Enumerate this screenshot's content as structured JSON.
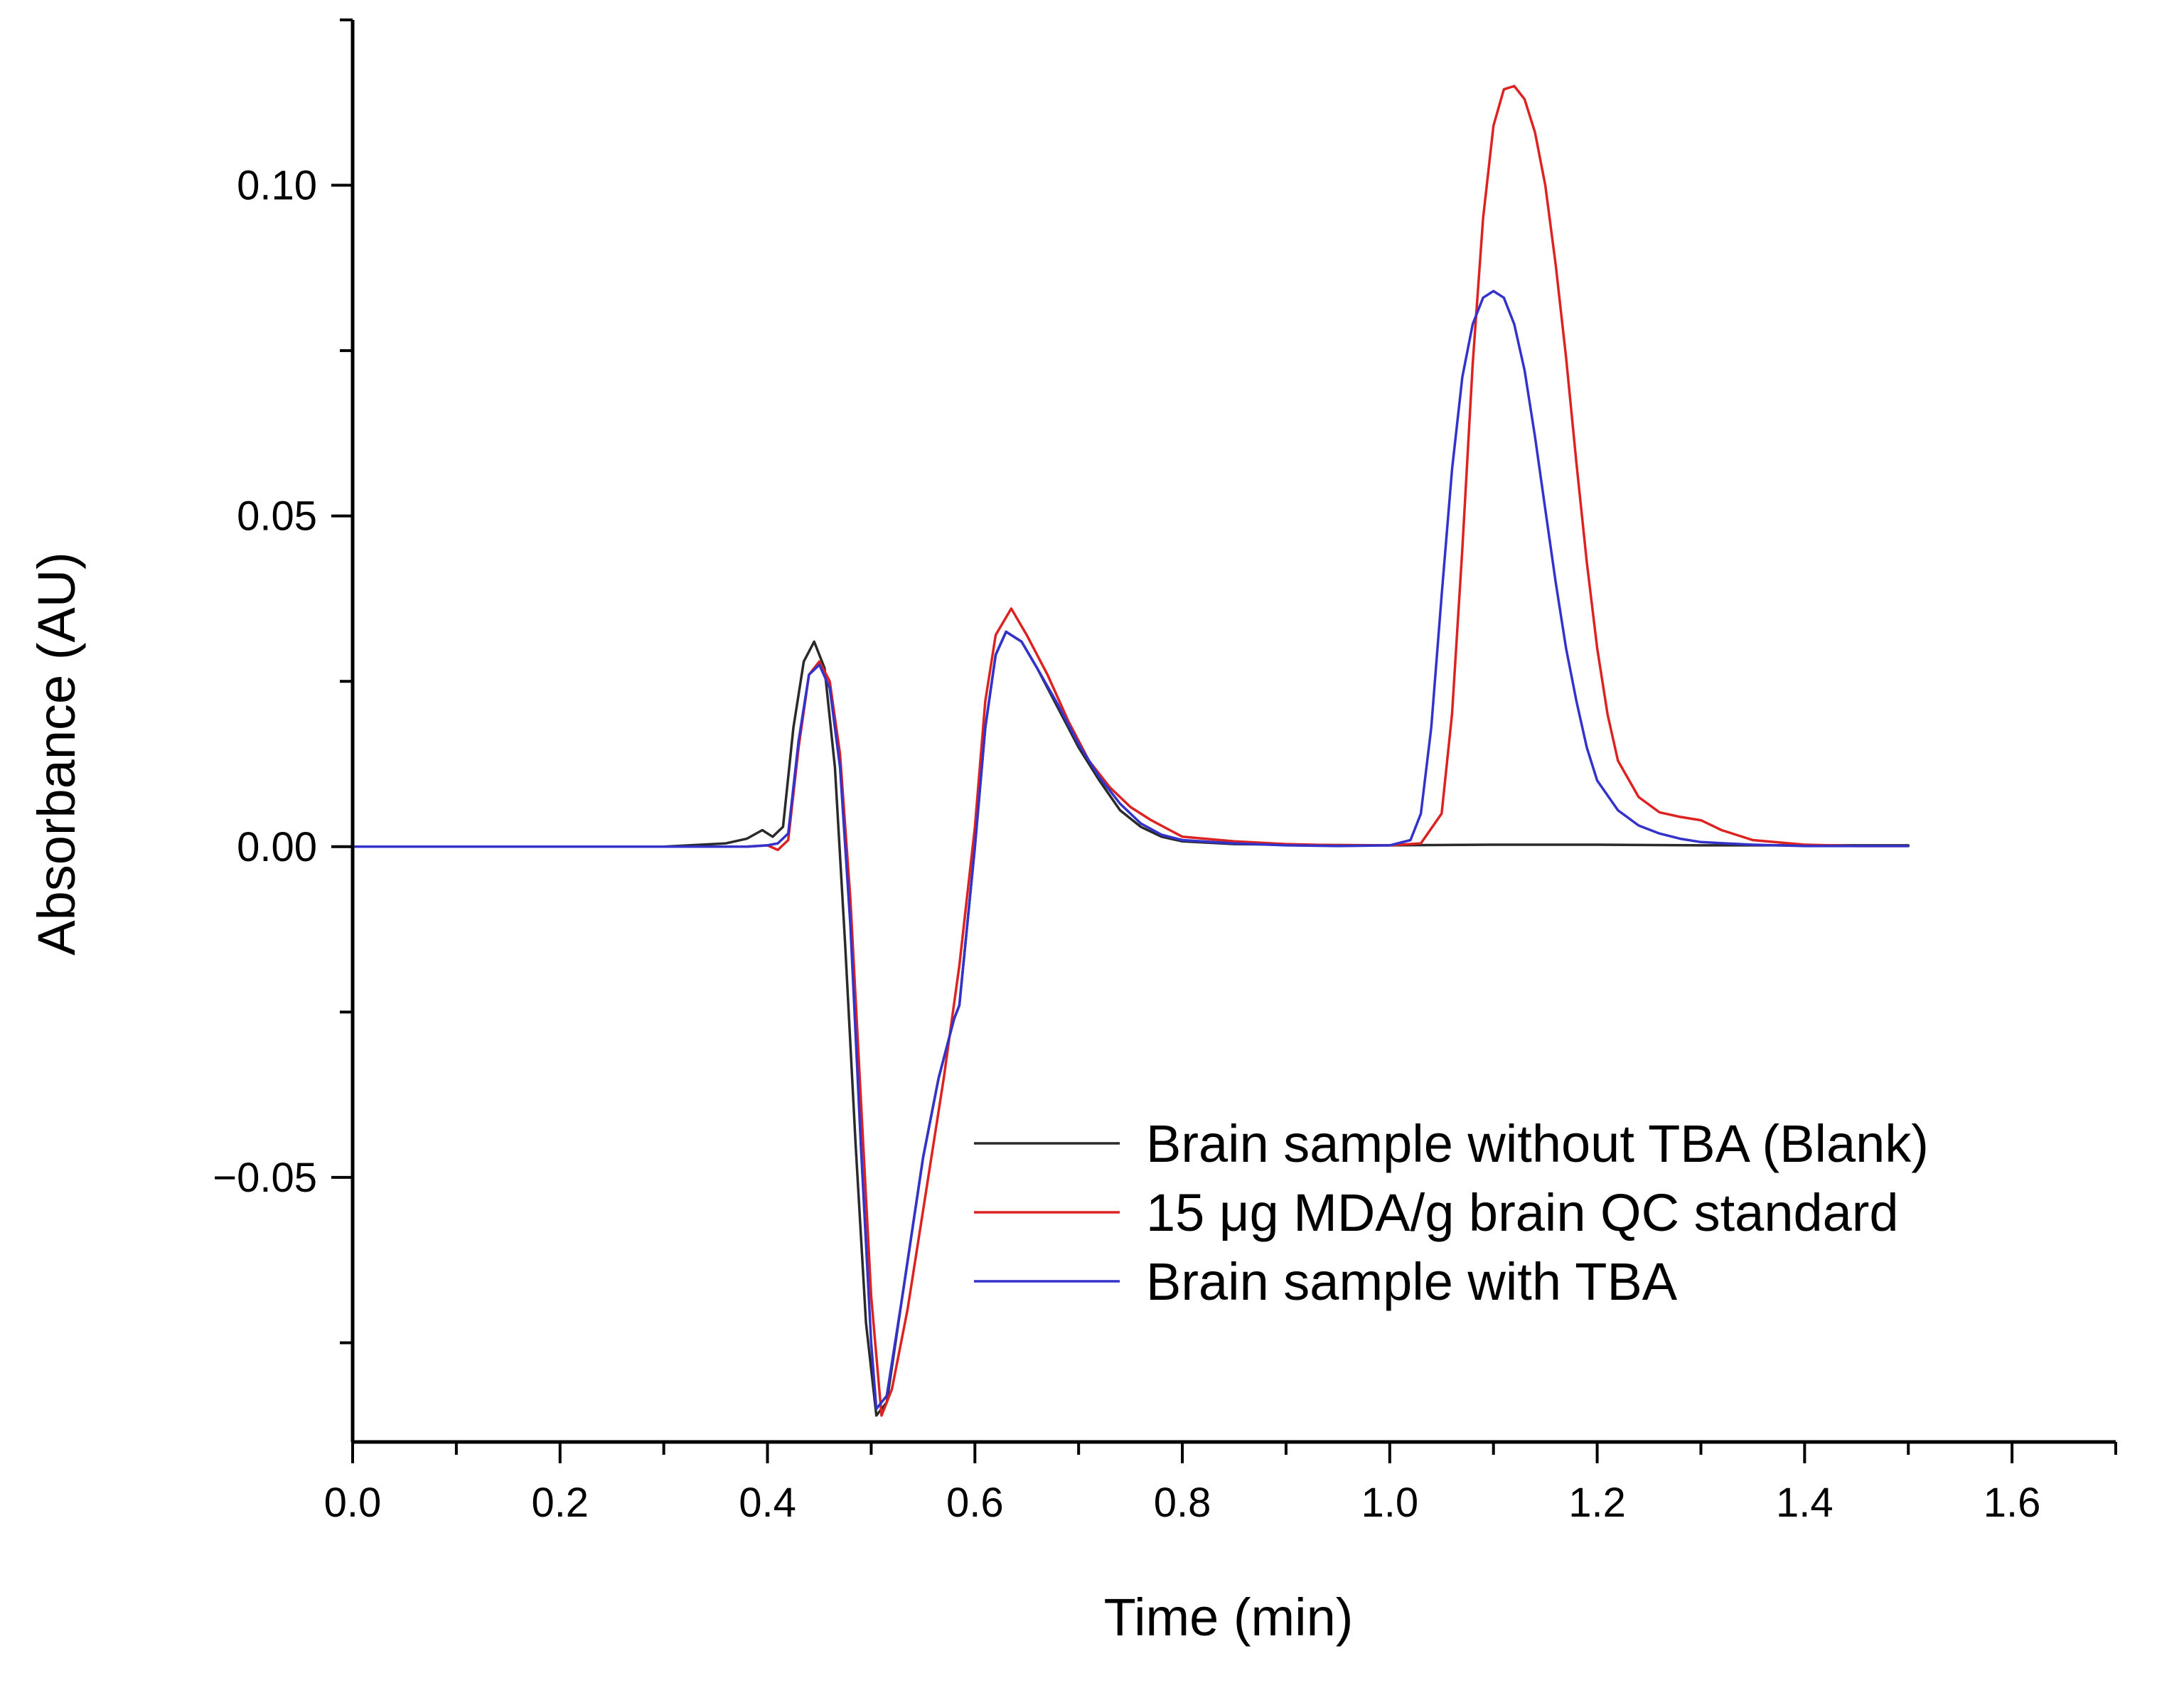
{
  "chart_data": {
    "type": "line",
    "title": "",
    "xlabel": "Time (min)",
    "ylabel": "Absorbance (AU)",
    "xlim": [
      0.0,
      1.7
    ],
    "ylim": [
      -0.09,
      0.125
    ],
    "x_major_ticks": [
      0.0,
      0.2,
      0.4,
      0.6,
      0.8,
      1.0,
      1.2,
      1.4,
      1.6
    ],
    "x_tick_labels": [
      "0.0",
      "0.2",
      "0.4",
      "0.6",
      "0.8",
      "1.0",
      "1.2",
      "1.4",
      "1.6"
    ],
    "y_major_ticks": [
      0.1,
      0.05,
      0.0,
      -0.05
    ],
    "y_tick_labels": [
      "0.10",
      "0.05",
      "0.00",
      "−0.05"
    ],
    "grid": false,
    "legend_position": "bottom-right",
    "series": [
      {
        "name": "Brain sample without TBA (Blank)",
        "color": "#2a2a2a",
        "x": [
          0.0,
          0.1,
          0.2,
          0.3,
          0.36,
          0.38,
          0.395,
          0.405,
          0.415,
          0.425,
          0.435,
          0.445,
          0.455,
          0.465,
          0.475,
          0.485,
          0.495,
          0.505,
          0.515,
          0.53,
          0.55,
          0.565,
          0.575,
          0.58,
          0.585,
          0.59,
          0.6,
          0.61,
          0.62,
          0.63,
          0.645,
          0.66,
          0.68,
          0.7,
          0.72,
          0.74,
          0.76,
          0.78,
          0.8,
          0.85,
          0.9,
          1.0,
          1.1,
          1.2,
          1.3,
          1.4,
          1.5
        ],
        "y": [
          0.0,
          0.0,
          0.0,
          0.0,
          0.0005,
          0.0012,
          0.0025,
          0.0015,
          0.003,
          0.018,
          0.028,
          0.031,
          0.027,
          0.012,
          -0.015,
          -0.045,
          -0.072,
          -0.086,
          -0.084,
          -0.068,
          -0.047,
          -0.035,
          -0.029,
          -0.026,
          -0.024,
          -0.016,
          0.0,
          0.018,
          0.029,
          0.0325,
          0.031,
          0.027,
          0.021,
          0.015,
          0.01,
          0.0055,
          0.003,
          0.0015,
          0.0008,
          0.0004,
          0.0003,
          0.0002,
          0.0003,
          0.0003,
          0.0002,
          0.0002,
          0.0002
        ]
      },
      {
        "name": "15 μg MDA/g brain QC standard",
        "color": "#dd2222",
        "x": [
          0.0,
          0.1,
          0.2,
          0.3,
          0.36,
          0.38,
          0.4,
          0.41,
          0.42,
          0.43,
          0.44,
          0.45,
          0.46,
          0.47,
          0.48,
          0.49,
          0.5,
          0.51,
          0.52,
          0.535,
          0.55,
          0.57,
          0.585,
          0.6,
          0.61,
          0.62,
          0.635,
          0.65,
          0.67,
          0.69,
          0.71,
          0.73,
          0.75,
          0.77,
          0.8,
          0.85,
          0.9,
          0.95,
          1.0,
          1.03,
          1.05,
          1.06,
          1.07,
          1.08,
          1.09,
          1.1,
          1.11,
          1.12,
          1.13,
          1.14,
          1.15,
          1.16,
          1.17,
          1.18,
          1.19,
          1.2,
          1.21,
          1.22,
          1.24,
          1.26,
          1.28,
          1.3,
          1.32,
          1.35,
          1.4,
          1.45,
          1.5
        ],
        "y": [
          0.0,
          0.0,
          0.0,
          0.0,
          0.0,
          0.0,
          0.0002,
          -0.0005,
          0.001,
          0.015,
          0.026,
          0.028,
          0.025,
          0.014,
          -0.008,
          -0.038,
          -0.068,
          -0.086,
          -0.082,
          -0.07,
          -0.055,
          -0.035,
          -0.018,
          0.003,
          0.022,
          0.032,
          0.036,
          0.032,
          0.026,
          0.019,
          0.013,
          0.009,
          0.006,
          0.004,
          0.0015,
          0.0008,
          0.0004,
          0.0002,
          0.0002,
          0.0005,
          0.005,
          0.02,
          0.045,
          0.073,
          0.095,
          0.109,
          0.1145,
          0.115,
          0.113,
          0.108,
          0.1,
          0.088,
          0.074,
          0.058,
          0.043,
          0.03,
          0.02,
          0.013,
          0.0075,
          0.0052,
          0.0045,
          0.004,
          0.0025,
          0.001,
          0.0003,
          0.0001,
          0.0001
        ]
      },
      {
        "name": "Brain sample with TBA",
        "color": "#3333cc",
        "x": [
          0.0,
          0.1,
          0.2,
          0.3,
          0.36,
          0.38,
          0.4,
          0.41,
          0.42,
          0.43,
          0.44,
          0.45,
          0.46,
          0.47,
          0.48,
          0.49,
          0.5,
          0.505,
          0.515,
          0.53,
          0.55,
          0.565,
          0.575,
          0.58,
          0.585,
          0.59,
          0.6,
          0.61,
          0.62,
          0.63,
          0.645,
          0.66,
          0.68,
          0.7,
          0.72,
          0.74,
          0.76,
          0.78,
          0.8,
          0.85,
          0.9,
          0.95,
          1.0,
          1.02,
          1.03,
          1.04,
          1.05,
          1.06,
          1.07,
          1.08,
          1.09,
          1.1,
          1.11,
          1.12,
          1.13,
          1.14,
          1.15,
          1.16,
          1.17,
          1.18,
          1.19,
          1.2,
          1.22,
          1.24,
          1.26,
          1.28,
          1.3,
          1.35,
          1.4,
          1.45,
          1.5
        ],
        "y": [
          0.0,
          0.0,
          0.0,
          0.0,
          0.0,
          0.0,
          0.0002,
          0.0005,
          0.002,
          0.016,
          0.026,
          0.0275,
          0.024,
          0.012,
          -0.012,
          -0.045,
          -0.075,
          -0.085,
          -0.083,
          -0.068,
          -0.047,
          -0.035,
          -0.029,
          -0.026,
          -0.024,
          -0.016,
          0.0,
          0.018,
          0.029,
          0.0325,
          0.031,
          0.027,
          0.0215,
          0.0155,
          0.0105,
          0.0065,
          0.0035,
          0.0018,
          0.001,
          0.0005,
          0.0002,
          0.0001,
          0.0002,
          0.001,
          0.005,
          0.018,
          0.038,
          0.057,
          0.071,
          0.079,
          0.083,
          0.084,
          0.083,
          0.079,
          0.072,
          0.062,
          0.051,
          0.04,
          0.03,
          0.022,
          0.015,
          0.01,
          0.0055,
          0.0032,
          0.002,
          0.0012,
          0.0007,
          0.0003,
          0.0001,
          0.0001,
          0.0001
        ]
      }
    ]
  }
}
